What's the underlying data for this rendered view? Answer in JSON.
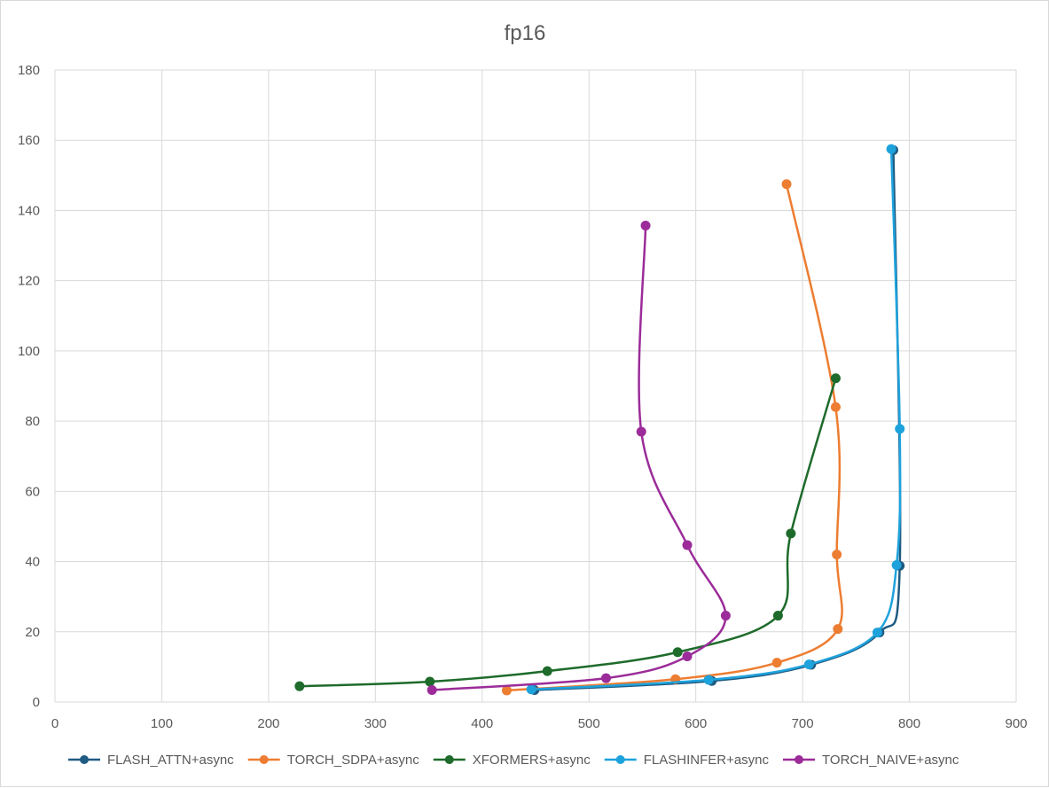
{
  "chart_data": {
    "type": "scatter",
    "title": "fp16",
    "xlim": [
      0,
      900
    ],
    "ylim": [
      0,
      180
    ],
    "x_ticks": [
      "0",
      "100",
      "200",
      "300",
      "400",
      "500",
      "600",
      "700",
      "800",
      "900"
    ],
    "y_ticks": [
      "0",
      "20",
      "40",
      "60",
      "80",
      "100",
      "120",
      "140",
      "160",
      "180"
    ],
    "grid": true,
    "smooth_lines": true,
    "legend_position": "bottom",
    "series": [
      {
        "name": "FLASH_ATTN+async",
        "color": "#1f5b82",
        "points": [
          [
            449,
            3.4
          ],
          [
            615,
            6.0
          ],
          [
            708,
            10.6
          ],
          [
            772,
            19.8
          ],
          [
            791,
            38.8
          ],
          [
            785,
            157.2
          ]
        ]
      },
      {
        "name": "TORCH_SDPA+async",
        "color": "#ed7d31",
        "points": [
          [
            423,
            3.3
          ],
          [
            581,
            6.5
          ],
          [
            676,
            11.2
          ],
          [
            733,
            20.8
          ],
          [
            732,
            42.0
          ],
          [
            731,
            84.0
          ],
          [
            685,
            147.5
          ]
        ]
      },
      {
        "name": "XFORMERS+async",
        "color": "#1e6b2b",
        "points": [
          [
            229,
            4.5
          ],
          [
            351,
            5.8
          ],
          [
            461,
            8.8
          ],
          [
            583,
            14.2
          ],
          [
            677,
            24.6
          ],
          [
            689,
            48.0
          ],
          [
            731,
            92.2
          ]
        ]
      },
      {
        "name": "FLASHINFER+async",
        "color": "#1ea2dc",
        "points": [
          [
            446,
            3.6
          ],
          [
            612,
            6.3
          ],
          [
            706,
            10.7
          ],
          [
            770,
            19.8
          ],
          [
            788,
            39.0
          ],
          [
            791,
            77.8
          ],
          [
            783,
            157.5
          ]
        ]
      },
      {
        "name": "TORCH_NAIVE+async",
        "color": "#9b2c99",
        "points": [
          [
            353,
            3.4
          ],
          [
            516,
            6.8
          ],
          [
            592,
            13.0
          ],
          [
            628,
            24.6
          ],
          [
            592,
            44.7
          ],
          [
            549,
            77.0
          ],
          [
            553,
            135.7
          ]
        ]
      }
    ]
  }
}
